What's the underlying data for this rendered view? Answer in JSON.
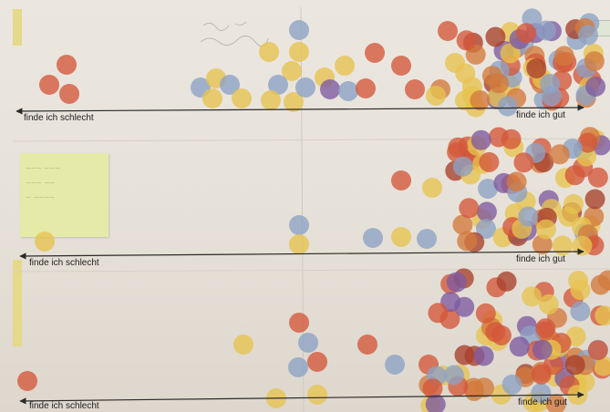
{
  "rows": [
    {
      "left_label": "finde ich schlecht",
      "right_label": "finde ich gut"
    },
    {
      "left_label": "finde ich schlecht",
      "right_label": "finde ich gut"
    },
    {
      "left_label": "finde ich schlecht",
      "right_label": "finde ich gut"
    }
  ],
  "dot_colors": {
    "red": "#d4573a",
    "orange": "#d27a3c",
    "yellow": "#e7c34e",
    "blue": "#8da2c4",
    "purple": "#7e5aa0",
    "darkred": "#a8402c"
  }
}
